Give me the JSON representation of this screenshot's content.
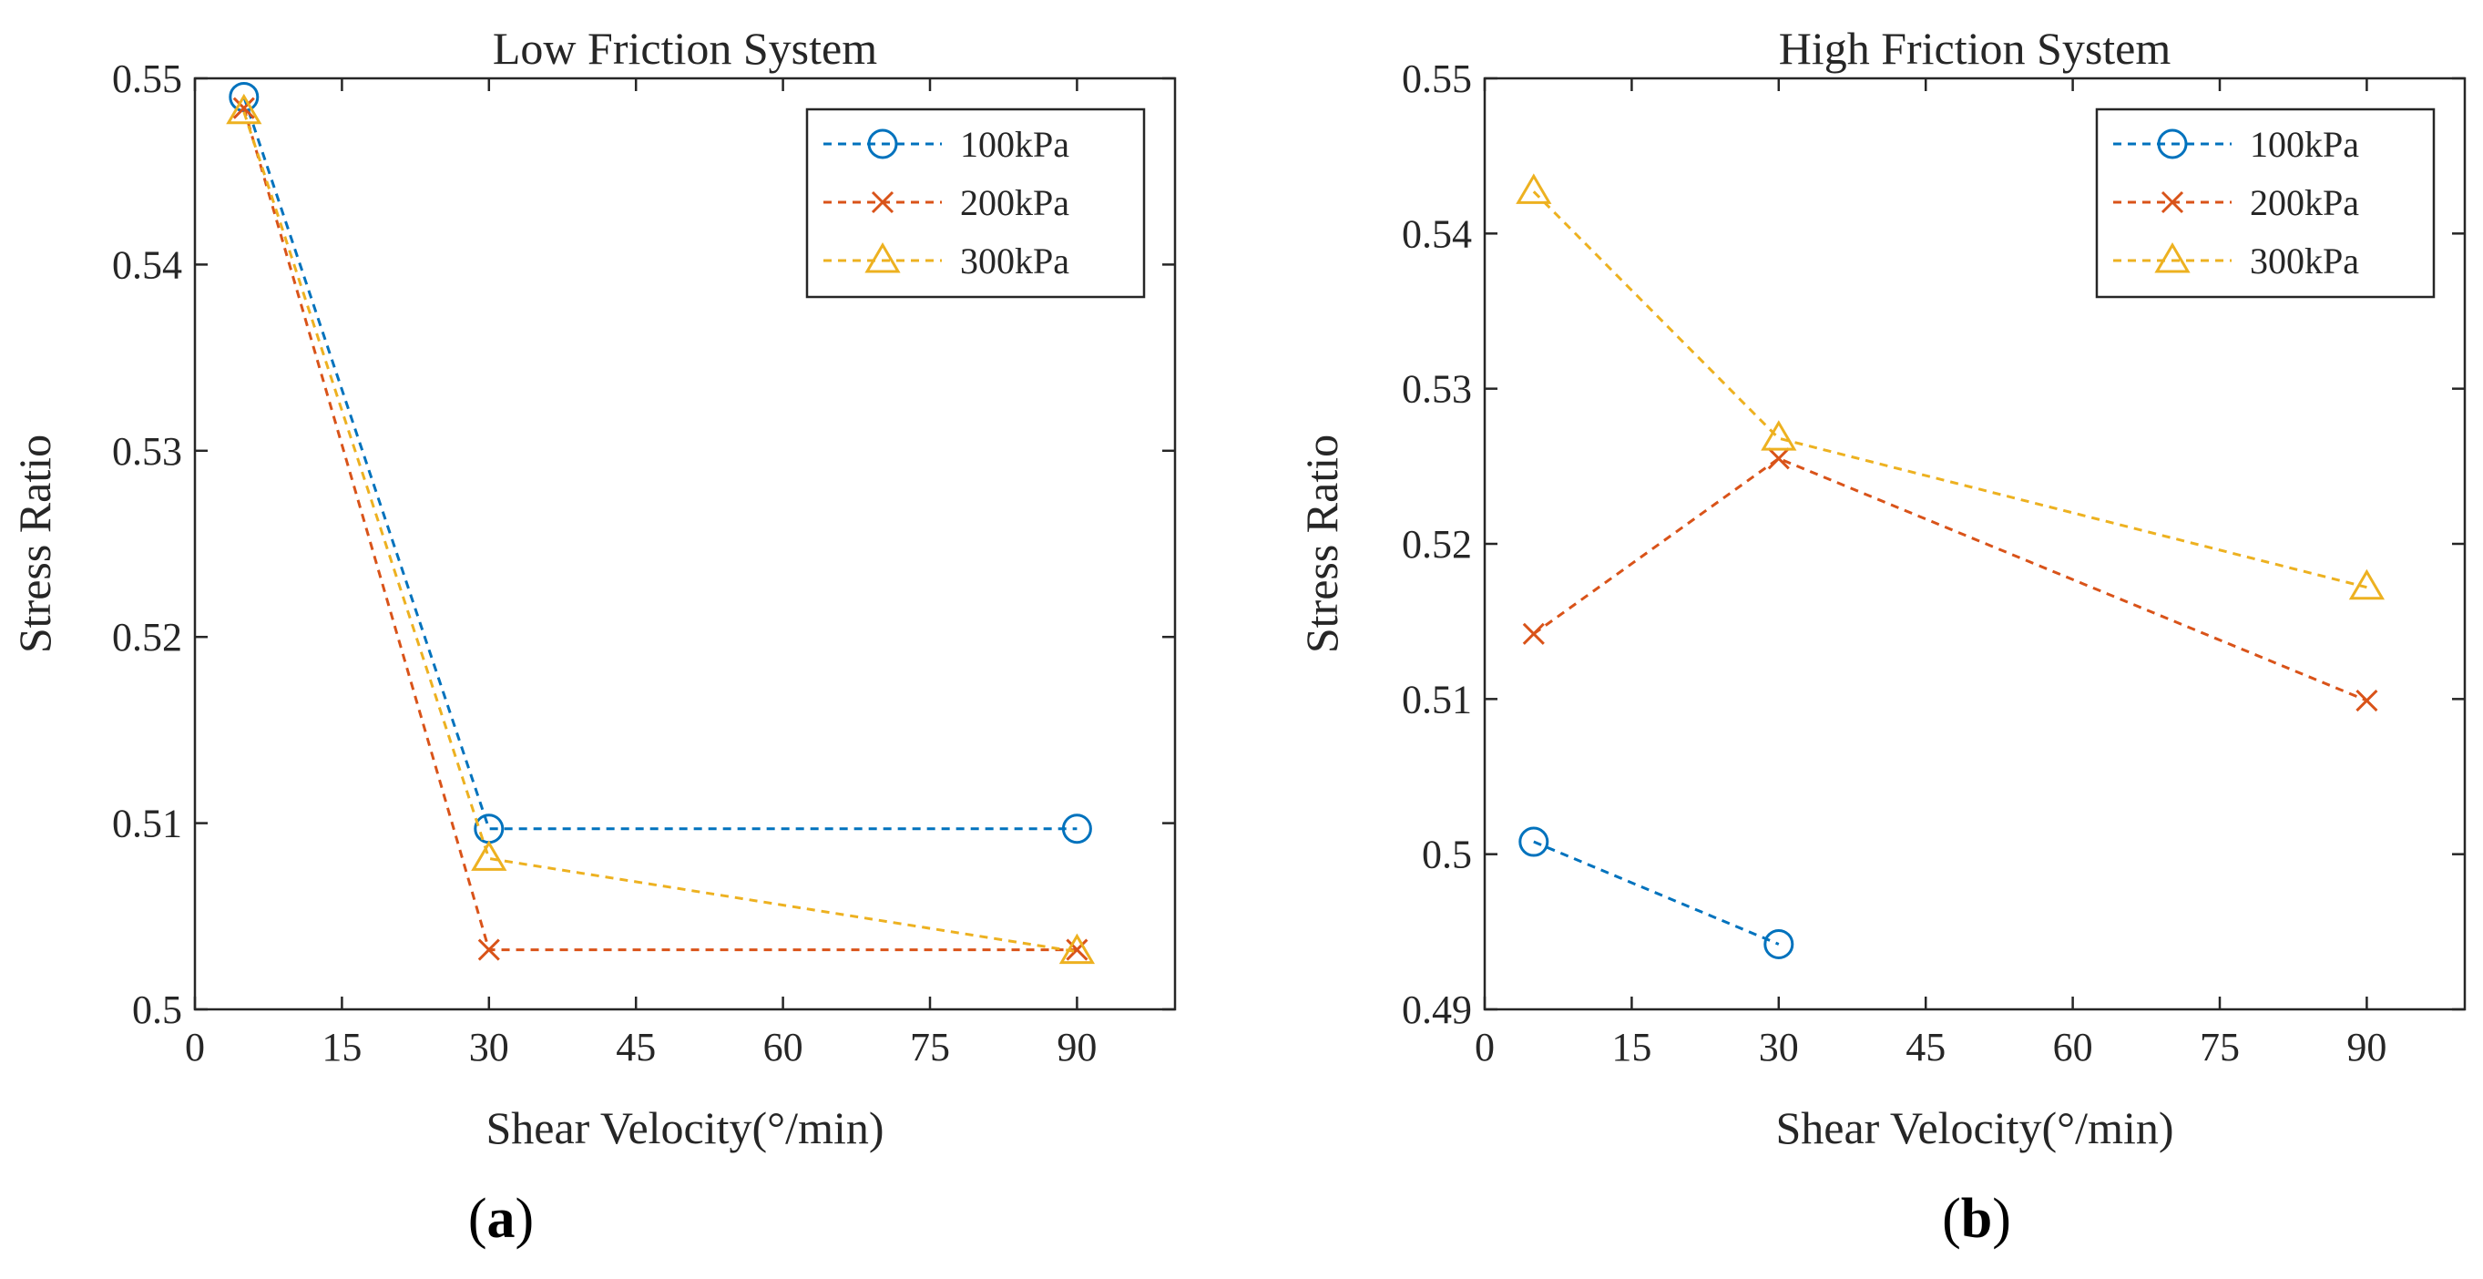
{
  "chart_data": [
    {
      "type": "line",
      "title": "Low Friction System",
      "xlabel": "Shear Velocity(°/min)",
      "ylabel": "Stress Ratio",
      "panel_label": "a",
      "xlim": [
        0,
        100
      ],
      "ylim": [
        0.5,
        0.55
      ],
      "xticks": [
        0,
        15,
        30,
        45,
        60,
        75,
        90
      ],
      "xtick_labels": [
        "0",
        "15",
        "30",
        "45",
        "60",
        "75",
        "90"
      ],
      "yticks": [
        0.5,
        0.51,
        0.52,
        0.53,
        0.54,
        0.55
      ],
      "ytick_labels": [
        "0.5",
        "0.51",
        "0.52",
        "0.53",
        "0.54",
        "0.55"
      ],
      "legend_position": "top-right",
      "grid": false,
      "x": [
        5,
        30,
        90
      ],
      "series": [
        {
          "name": "100kPa",
          "values": [
            0.549,
            0.5097,
            0.5097
          ],
          "color": "#0072BD",
          "marker": "circle"
        },
        {
          "name": "200kPa",
          "values": [
            0.5484,
            0.5032,
            0.5032
          ],
          "color": "#D95319",
          "marker": "x"
        },
        {
          "name": "300kPa",
          "values": [
            0.5482,
            0.5081,
            0.5031
          ],
          "color": "#EDB120",
          "marker": "triangle"
        }
      ]
    },
    {
      "type": "line",
      "title": "High Friction System",
      "xlabel": "Shear Velocity(°/min)",
      "ylabel": "Stress Ratio",
      "panel_label": "b",
      "xlim": [
        0,
        100
      ],
      "ylim": [
        0.49,
        0.55
      ],
      "xticks": [
        0,
        15,
        30,
        45,
        60,
        75,
        90
      ],
      "xtick_labels": [
        "0",
        "15",
        "30",
        "45",
        "60",
        "75",
        "90"
      ],
      "yticks": [
        0.49,
        0.5,
        0.51,
        0.52,
        0.53,
        0.54,
        0.55
      ],
      "ytick_labels": [
        "0.49",
        "0.5",
        "0.51",
        "0.52",
        "0.53",
        "0.54",
        "0.55"
      ],
      "legend_position": "top-right",
      "grid": false,
      "series": [
        {
          "name": "100kPa",
          "x": [
            5,
            30
          ],
          "values": [
            0.5008,
            0.4942
          ],
          "color": "#0072BD",
          "marker": "circle"
        },
        {
          "name": "200kPa",
          "x": [
            5,
            30,
            90
          ],
          "values": [
            0.5142,
            0.5255,
            0.5099
          ],
          "color": "#D95319",
          "marker": "x"
        },
        {
          "name": "300kPa",
          "x": [
            5,
            30,
            90
          ],
          "values": [
            0.5427,
            0.5268,
            0.5172
          ],
          "color": "#EDB120",
          "marker": "triangle"
        }
      ]
    }
  ]
}
